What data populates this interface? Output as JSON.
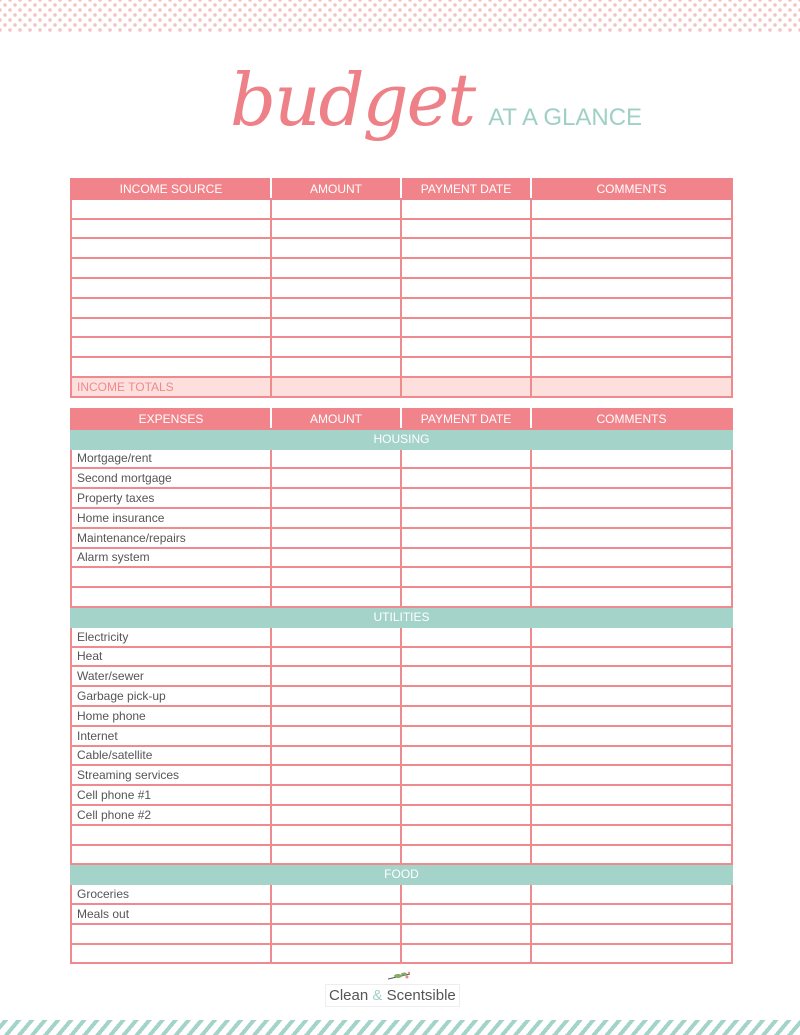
{
  "header": {
    "title_script": "budget",
    "title_sub": "AT A GLANCE"
  },
  "income": {
    "columns": [
      "INCOME SOURCE",
      "AMOUNT",
      "PAYMENT DATE",
      "COMMENTS"
    ],
    "blank_rows": 9,
    "totals_label": "INCOME TOTALS"
  },
  "expenses": {
    "columns": [
      "EXPENSES",
      "AMOUNT",
      "PAYMENT DATE",
      "COMMENTS"
    ],
    "sections": [
      {
        "name": "HOUSING",
        "items": [
          "Mortgage/rent",
          "Second mortgage",
          "Property taxes",
          "Home insurance",
          "Maintenance/repairs",
          "Alarm system",
          "",
          ""
        ]
      },
      {
        "name": "UTILITIES",
        "items": [
          "Electricity",
          "Heat",
          "Water/sewer",
          "Garbage pick-up",
          "Home phone",
          "Internet",
          "Cable/satellite",
          "Streaming services",
          "Cell phone #1",
          "Cell phone #2",
          "",
          ""
        ]
      },
      {
        "name": "FOOD",
        "items": [
          "Groceries",
          "Meals out",
          "",
          ""
        ]
      }
    ]
  },
  "footer": {
    "brand_left": "Clean",
    "brand_amp": "&",
    "brand_right": "Scentsible"
  },
  "colors": {
    "pink": "#f0848a",
    "teal": "#a4d3c9",
    "totals_bg": "#fde0dd"
  }
}
